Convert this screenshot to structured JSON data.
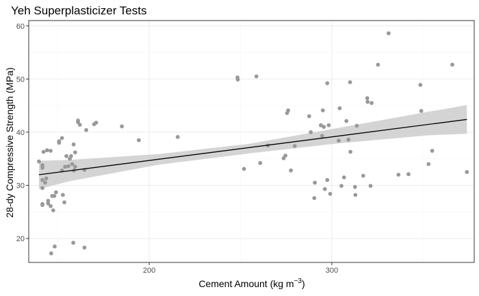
{
  "chart_data": {
    "type": "scatter",
    "title": "Yeh Superplasticizer Tests",
    "xlabel": "Cement Amount (kg m",
    "xlabel_sup": "−3",
    "xlabel_close": ")",
    "ylabel": "28-dy Compressive Strength (MPa)",
    "xlim": [
      134,
      378
    ],
    "ylim": [
      15.5,
      61
    ],
    "x_ticks": [
      200,
      300
    ],
    "y_ticks": [
      20,
      30,
      40,
      50,
      60
    ],
    "x_tick_labels": [
      "200",
      "300"
    ],
    "y_tick_labels": [
      "20",
      "30",
      "40",
      "50",
      "60"
    ],
    "grid": true,
    "legend": "none",
    "point_color": "#999999",
    "line_color": "#000000",
    "band_color": "#cccccc",
    "fit_line": {
      "x": [
        139.6,
        374.0
      ],
      "y": [
        32.0,
        42.4
      ]
    },
    "confidence_band": {
      "x": [
        139.6,
        156.7,
        205.6,
        254.5,
        303.4,
        352.3,
        374.0
      ],
      "lower": [
        29.3,
        30.8,
        33.9,
        36.0,
        37.9,
        39.4,
        39.7
      ],
      "upper": [
        34.6,
        34.8,
        35.9,
        37.8,
        40.8,
        43.8,
        45.1
      ]
    },
    "points": [
      [
        139.6,
        34.5
      ],
      [
        141.5,
        33.3
      ],
      [
        141.5,
        33.8
      ],
      [
        141.5,
        29.5
      ],
      [
        141.5,
        31.0
      ],
      [
        141.5,
        26.3
      ],
      [
        141.5,
        26.5
      ],
      [
        142.1,
        36.3
      ],
      [
        143.0,
        30.5
      ],
      [
        143.6,
        31.3
      ],
      [
        144.0,
        36.6
      ],
      [
        144.6,
        26.6
      ],
      [
        144.6,
        27.1
      ],
      [
        146.0,
        36.5
      ],
      [
        146.0,
        26.1
      ],
      [
        146.3,
        17.2
      ],
      [
        146.8,
        28.0
      ],
      [
        147.4,
        25.3
      ],
      [
        148.0,
        28.0
      ],
      [
        148.2,
        18.5
      ],
      [
        148.9,
        28.7
      ],
      [
        150.6,
        38.0
      ],
      [
        150.6,
        38.3
      ],
      [
        152.2,
        32.8
      ],
      [
        152.2,
        38.9
      ],
      [
        152.7,
        28.2
      ],
      [
        153.5,
        26.8
      ],
      [
        153.9,
        33.5
      ],
      [
        154.6,
        35.5
      ],
      [
        155.7,
        33.6
      ],
      [
        156.5,
        35.0
      ],
      [
        157.2,
        35.5
      ],
      [
        157.8,
        34.0
      ],
      [
        158.4,
        19.2
      ],
      [
        158.6,
        37.7
      ],
      [
        158.8,
        32.8
      ],
      [
        159.4,
        33.5
      ],
      [
        159.4,
        36.2
      ],
      [
        161.0,
        41.9
      ],
      [
        161.0,
        42.2
      ],
      [
        162.0,
        41.4
      ],
      [
        164.5,
        32.9
      ],
      [
        164.5,
        18.3
      ],
      [
        165.5,
        40.4
      ],
      [
        169.8,
        41.5
      ],
      [
        170.9,
        41.8
      ],
      [
        185.0,
        41.1
      ],
      [
        194.3,
        38.5
      ],
      [
        215.6,
        39.1
      ],
      [
        248.3,
        50.3
      ],
      [
        248.5,
        49.9
      ],
      [
        251.9,
        33.1
      ],
      [
        258.7,
        50.5
      ],
      [
        260.8,
        34.2
      ],
      [
        265.0,
        37.5
      ],
      [
        273.6,
        35.1
      ],
      [
        274.6,
        35.6
      ],
      [
        275.5,
        43.6
      ],
      [
        276.1,
        44.1
      ],
      [
        277.6,
        32.8
      ],
      [
        279.7,
        37.4
      ],
      [
        287.6,
        43.0
      ],
      [
        288.5,
        40.0
      ],
      [
        290.4,
        27.6
      ],
      [
        290.7,
        30.5
      ],
      [
        294.0,
        41.3
      ],
      [
        294.7,
        39.3
      ],
      [
        295.1,
        44.1
      ],
      [
        295.6,
        41.0
      ],
      [
        296.2,
        29.3
      ],
      [
        297.5,
        49.2
      ],
      [
        297.5,
        31.0
      ],
      [
        298.3,
        41.3
      ],
      [
        299.1,
        28.4
      ],
      [
        303.8,
        38.4
      ],
      [
        304.3,
        44.5
      ],
      [
        305.3,
        29.9
      ],
      [
        306.7,
        31.5
      ],
      [
        308.0,
        42.1
      ],
      [
        309.1,
        38.6
      ],
      [
        310.0,
        49.4
      ],
      [
        310.2,
        36.3
      ],
      [
        312.7,
        29.7
      ],
      [
        312.9,
        28.2
      ],
      [
        313.7,
        41.2
      ],
      [
        317.2,
        31.8
      ],
      [
        319.4,
        46.4
      ],
      [
        319.6,
        45.7
      ],
      [
        321.2,
        29.9
      ],
      [
        321.8,
        45.5
      ],
      [
        325.3,
        52.7
      ],
      [
        331.1,
        58.6
      ],
      [
        336.5,
        32.0
      ],
      [
        342.0,
        32.1
      ],
      [
        348.5,
        48.9
      ],
      [
        349.0,
        44.0
      ],
      [
        353.0,
        34.0
      ],
      [
        355.0,
        36.5
      ],
      [
        366.0,
        52.7
      ],
      [
        374.0,
        32.5
      ]
    ]
  }
}
